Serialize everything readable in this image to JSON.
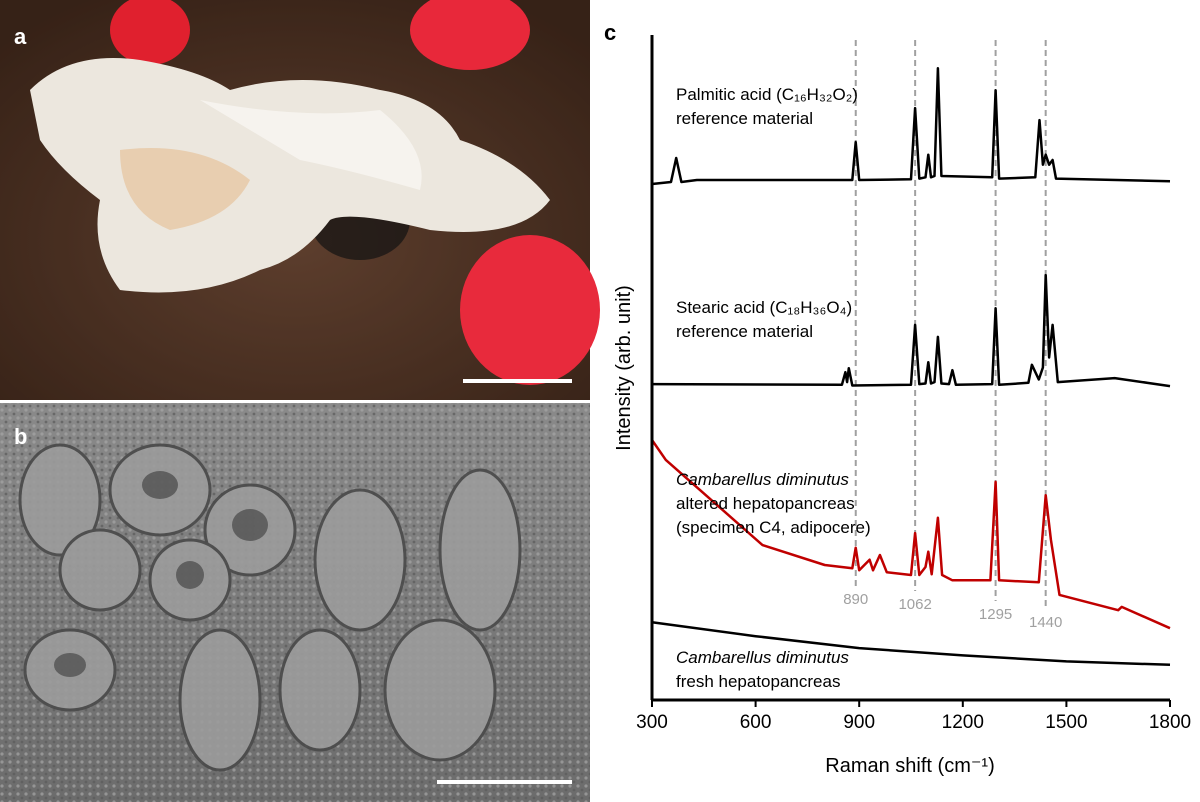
{
  "panels": {
    "a": "a",
    "b": "b",
    "c": "c"
  },
  "chart_data": {
    "type": "line",
    "xlabel": "Raman shift (cm⁻¹)",
    "ylabel": "Intensity (arb. unit)",
    "xlim": [
      300,
      1800
    ],
    "xticks": [
      300,
      600,
      900,
      1200,
      1500,
      1800
    ],
    "ylim": [
      0,
      100
    ],
    "peak_markers": [
      890,
      1062,
      1295,
      1440
    ],
    "series": [
      {
        "name": "Palmitic acid (C₁₆H₃₂O₂)",
        "detail": [
          "reference material"
        ],
        "italic_name": false,
        "color": "#000000",
        "x": [
          300,
          355,
          370,
          385,
          430,
          880,
          890,
          900,
          1050,
          1062,
          1074,
          1092,
          1100,
          1108,
          1118,
          1128,
          1138,
          1285,
          1295,
          1305,
          1410,
          1422,
          1432,
          1440,
          1450,
          1460,
          1470,
          1800
        ],
        "values": [
          77.6,
          77.9,
          81.5,
          77.9,
          78.2,
          78.2,
          83.9,
          78.2,
          78.3,
          89.0,
          78.4,
          78.6,
          82.0,
          78.6,
          78.8,
          95.0,
          78.8,
          78.6,
          91.7,
          78.4,
          78.6,
          87.2,
          80.5,
          82.0,
          80.5,
          81.2,
          78.4,
          78.0
        ]
      },
      {
        "name": "Stearic acid (C₁₈H₃₆O₄)",
        "detail": [
          "reference material"
        ],
        "italic_name": false,
        "color": "#000000",
        "x": [
          300,
          850,
          860,
          865,
          870,
          880,
          1050,
          1062,
          1074,
          1092,
          1100,
          1108,
          1118,
          1128,
          1138,
          1160,
          1170,
          1180,
          1285,
          1295,
          1305,
          1390,
          1400,
          1420,
          1432,
          1440,
          1450,
          1460,
          1475,
          1640,
          1800
        ],
        "values": [
          47.5,
          47.4,
          49.3,
          47.8,
          49.9,
          47.3,
          47.4,
          56.4,
          47.5,
          47.6,
          50.8,
          47.6,
          47.8,
          54.6,
          47.6,
          47.5,
          49.6,
          47.4,
          47.5,
          58.9,
          47.4,
          47.7,
          50.4,
          48.2,
          50.0,
          63.9,
          51.5,
          56.4,
          47.8,
          48.4,
          47.2
        ]
      },
      {
        "name": "Cambarellus diminutus",
        "detail": [
          "altered hepatopancreas",
          "(specimen C4, adipocere)"
        ],
        "italic_name": true,
        "color": "#c00000",
        "x": [
          300,
          340,
          620,
          800,
          880,
          890,
          900,
          930,
          940,
          960,
          980,
          1050,
          1062,
          1074,
          1092,
          1100,
          1110,
          1128,
          1140,
          1170,
          1280,
          1295,
          1305,
          1420,
          1440,
          1455,
          1480,
          1650,
          1660,
          1800
        ],
        "values": [
          39.1,
          36.1,
          23.3,
          20.3,
          19.8,
          22.9,
          19.5,
          21.1,
          19.5,
          21.8,
          19.2,
          18.8,
          25.1,
          18.8,
          20.0,
          22.3,
          18.9,
          27.4,
          18.8,
          18.0,
          18.0,
          32.8,
          18.0,
          17.7,
          30.8,
          24.1,
          15.8,
          13.5,
          14.0,
          10.8
        ]
      },
      {
        "name": "Cambarellus diminutus",
        "detail": [
          "fresh hepatopancreas"
        ],
        "italic_name": true,
        "color": "#000000",
        "x": [
          300,
          600,
          900,
          1200,
          1500,
          1800
        ],
        "values": [
          11.7,
          9.6,
          7.8,
          6.7,
          5.8,
          5.3
        ]
      }
    ]
  }
}
